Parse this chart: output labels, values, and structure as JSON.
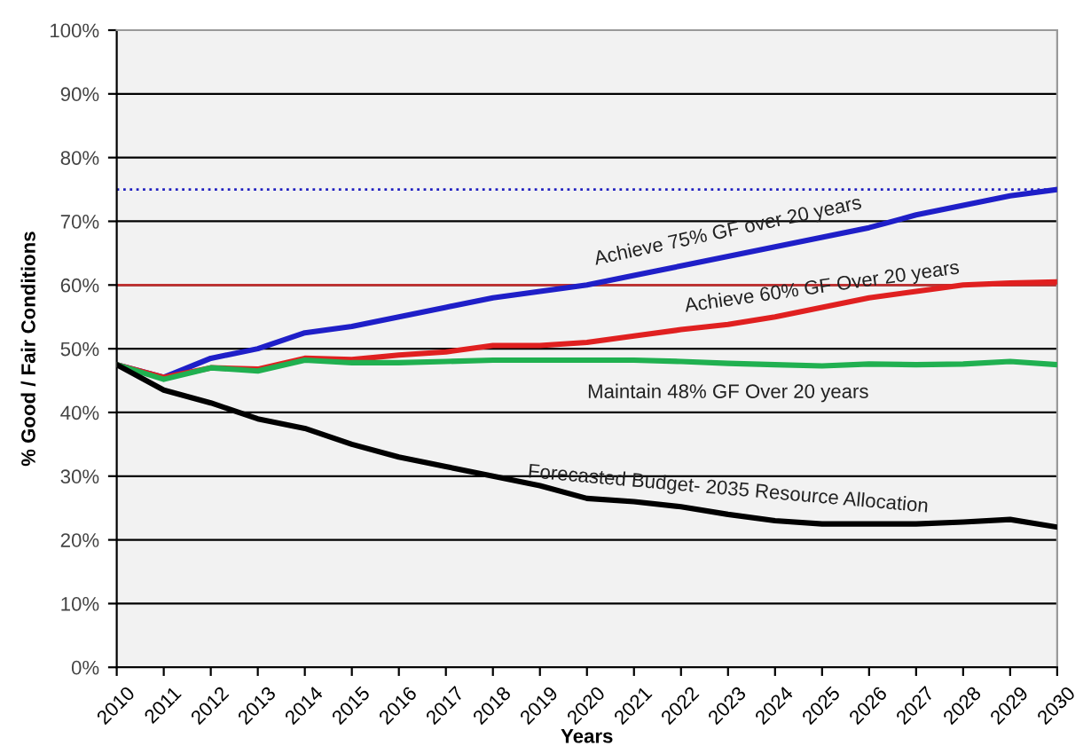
{
  "chart_data": {
    "type": "line",
    "xlabel": "Years",
    "ylabel": "% Good / Fair Conditions",
    "x": [
      2010,
      2011,
      2012,
      2013,
      2014,
      2015,
      2016,
      2017,
      2018,
      2019,
      2020,
      2021,
      2022,
      2023,
      2024,
      2025,
      2026,
      2027,
      2028,
      2029,
      2030
    ],
    "series": [
      {
        "name": "Achieve 75% GF over 20 years",
        "color": "#1f1fc8",
        "values": [
          47.5,
          45.5,
          48.5,
          50,
          52.5,
          53.5,
          55,
          56.5,
          58,
          59,
          60,
          61.5,
          63,
          64.5,
          66,
          67.5,
          69,
          71,
          72.5,
          74,
          75
        ]
      },
      {
        "name": "Achieve 60% GF Over 20 years",
        "color": "#e02020",
        "values": [
          47.5,
          45.5,
          47,
          46.8,
          48.5,
          48.3,
          49,
          49.5,
          50.5,
          50.5,
          51,
          52,
          53,
          53.8,
          55,
          56.5,
          58,
          59,
          60,
          60.3,
          60.5
        ]
      },
      {
        "name": "Maintain 48% GF Over 20 years",
        "color": "#20b050",
        "values": [
          47.5,
          45.2,
          47,
          46.5,
          48.2,
          47.8,
          47.8,
          48,
          48.2,
          48.2,
          48.2,
          48.2,
          48,
          47.7,
          47.5,
          47.3,
          47.6,
          47.5,
          47.6,
          48,
          47.5
        ]
      },
      {
        "name": "Forecasted Budget- 2035 Resource Allocation",
        "color": "#000000",
        "values": [
          47.5,
          43.5,
          41.5,
          39,
          37.5,
          35,
          33,
          31.5,
          30,
          28.5,
          26.5,
          26,
          25.2,
          24,
          23,
          22.5,
          22.5,
          22.5,
          22.8,
          23.2,
          22
        ]
      }
    ],
    "ref_lines": [
      {
        "axis": "y",
        "value": 75,
        "color": "#2020c0",
        "line_style": "dotted"
      },
      {
        "axis": "y",
        "value": 60,
        "color": "#c03030",
        "line_style": "solid"
      }
    ],
    "xlim": [
      2010,
      2030
    ],
    "xticks": [
      2010,
      2011,
      2012,
      2013,
      2014,
      2015,
      2016,
      2017,
      2018,
      2019,
      2020,
      2021,
      2022,
      2023,
      2024,
      2025,
      2026,
      2027,
      2028,
      2029,
      2030
    ],
    "ylim": [
      0,
      100
    ],
    "yticks": [
      {
        "value": 0,
        "label": "0%"
      },
      {
        "value": 10,
        "label": "10%"
      },
      {
        "value": 20,
        "label": "20%"
      },
      {
        "value": 30,
        "label": "30%"
      },
      {
        "value": 40,
        "label": "40%"
      },
      {
        "value": 50,
        "label": "50%"
      },
      {
        "value": 60,
        "label": "60%"
      },
      {
        "value": 70,
        "label": "70%"
      },
      {
        "value": 80,
        "label": "80%"
      },
      {
        "value": 90,
        "label": "90%"
      },
      {
        "value": 100,
        "label": "100%"
      }
    ],
    "grid": "y",
    "legend": false,
    "marker": "none",
    "line_style": "solid"
  }
}
